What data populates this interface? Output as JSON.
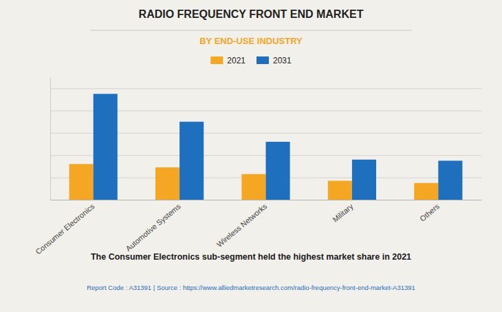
{
  "chart_data": {
    "type": "bar",
    "title": "RADIO FREQUENCY FRONT END MARKET",
    "subtitle": "BY END-USE INDUSTRY",
    "annotations": [
      "The Consumer Electronics sub-segment held the highest market share in 2021",
      "Report Code : A31391  |  Source : https://www.alliedmarketresearch.com/radio-frequency-front-end-market-A31391"
    ],
    "categories": [
      "Consumer Electronics",
      "Automotive Systems",
      "Wireless Networks",
      "Military",
      "Others"
    ],
    "series": [
      {
        "name": "2021",
        "color": "#F5A623",
        "values": [
          3.2,
          2.9,
          2.3,
          1.7,
          1.5
        ]
      },
      {
        "name": "2031",
        "color": "#1F6FBF",
        "values": [
          9.5,
          7.0,
          5.2,
          3.6,
          3.5
        ]
      }
    ],
    "ylim": [
      0,
      11
    ],
    "yticks": [
      0,
      2,
      4,
      6,
      8,
      10
    ],
    "grid": true,
    "legend": "top",
    "tick_labels": "x"
  }
}
